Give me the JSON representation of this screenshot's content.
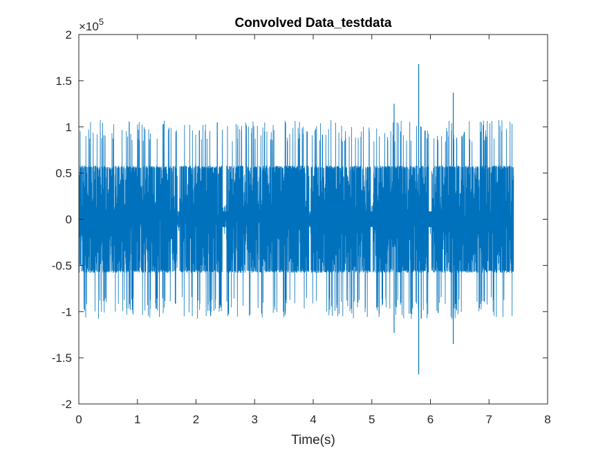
{
  "chart_data": {
    "type": "line",
    "title": "Convolved Data_testdata",
    "xlabel": "Time(s)",
    "ylabel": "",
    "xlim": [
      0,
      8
    ],
    "ylim": [
      -200000,
      200000
    ],
    "x_ticks": [
      0,
      1,
      2,
      3,
      4,
      5,
      6,
      7,
      8
    ],
    "x_tick_labels": [
      "0",
      "1",
      "2",
      "3",
      "4",
      "5",
      "6",
      "7",
      "8"
    ],
    "y_ticks": [
      -200000,
      -150000,
      -100000,
      -50000,
      0,
      50000,
      100000,
      150000,
      200000
    ],
    "y_tick_labels": [
      "-2",
      "-1.5",
      "-1",
      "-0.5",
      "0",
      "0.5",
      "1",
      "1.5",
      "2"
    ],
    "y_exponent_base": "×10",
    "y_exponent_power": "5",
    "grid": false,
    "series_color": "#0072BD",
    "series": [
      {
        "x_range": [
          0,
          7.42
        ],
        "typical_envelope": [
          -58000,
          58000
        ],
        "burst_envelope": [
          -108000,
          108000
        ],
        "peaks": [
          {
            "x": 5.38,
            "y": 125000
          },
          {
            "x": 5.38,
            "y": -123000
          },
          {
            "x": 5.8,
            "y": 168000
          },
          {
            "x": 5.8,
            "y": -168000
          },
          {
            "x": 6.39,
            "y": 137000
          },
          {
            "x": 6.39,
            "y": -135000
          }
        ]
      }
    ]
  }
}
